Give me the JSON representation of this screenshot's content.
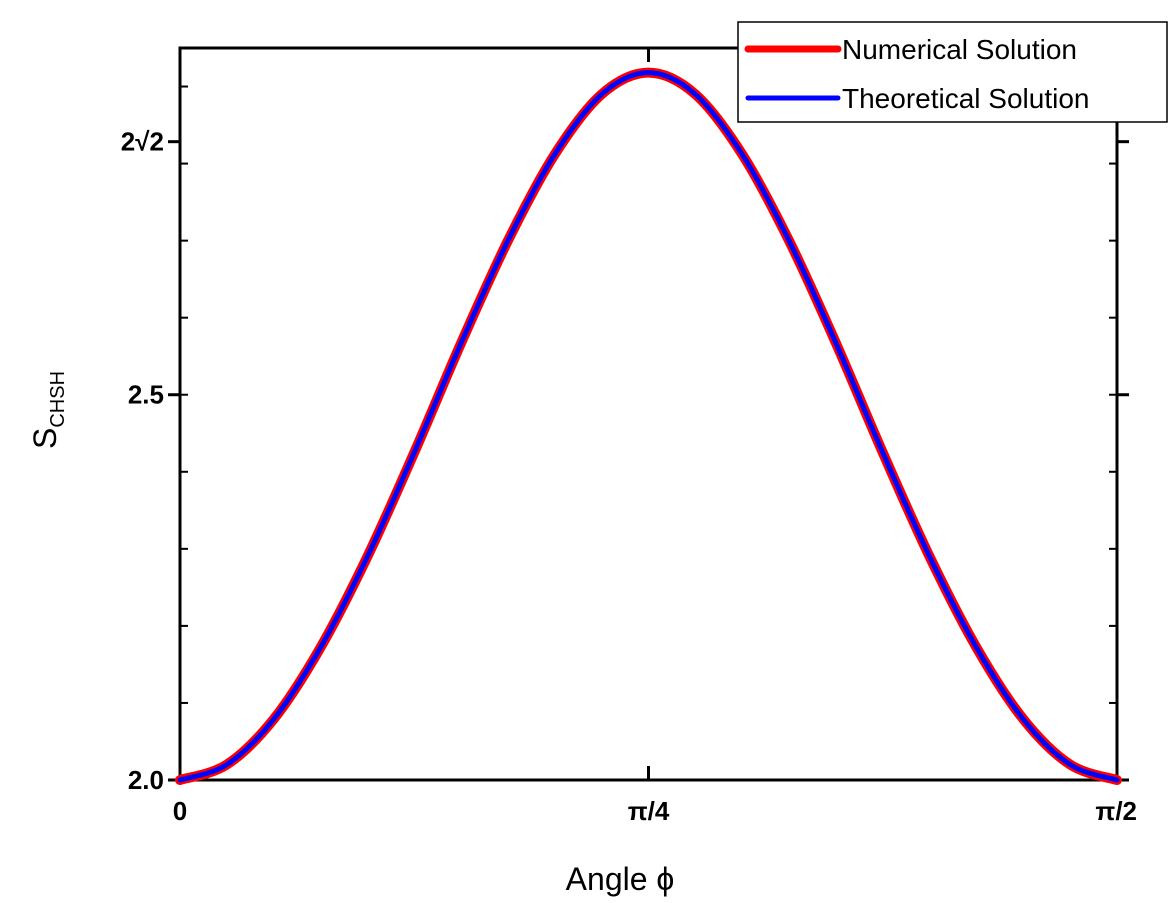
{
  "chart_data": {
    "type": "line",
    "title": "",
    "xlabel": "Angle ϕ",
    "ylabel_main": "S",
    "ylabel_sub": "CHSH",
    "x_ticks": [
      {
        "value": 0,
        "label": "0"
      },
      {
        "value": 0.7853981634,
        "label": "π/4"
      },
      {
        "value": 1.5707963268,
        "label": "π/2"
      }
    ],
    "y_ticks": [
      {
        "value": 2.0,
        "label": "2.0"
      },
      {
        "value": 2.5,
        "label": "2.5"
      },
      {
        "value": 2.8284271247,
        "label": "2√2"
      }
    ],
    "xlim": [
      0,
      1.5707963268
    ],
    "ylim": [
      2.0,
      2.95
    ],
    "y_minor_step": 0.1,
    "x": [
      0,
      0.0785,
      0.1571,
      0.2356,
      0.3142,
      0.3927,
      0.4712,
      0.5498,
      0.6283,
      0.7069,
      0.7854,
      0.8639,
      0.9425,
      1.021,
      1.0996,
      1.1781,
      1.2566,
      1.3352,
      1.4137,
      1.4923,
      1.5708
    ],
    "series": [
      {
        "name": "Numerical Solution",
        "color": "#ff0000",
        "values": [
          2.0,
          2.02,
          2.079,
          2.172,
          2.29,
          2.425,
          2.567,
          2.7,
          2.812,
          2.89,
          2.918,
          2.89,
          2.812,
          2.7,
          2.567,
          2.425,
          2.29,
          2.172,
          2.079,
          2.02,
          2.0
        ]
      },
      {
        "name": "Theoretical Solution",
        "color": "#0000ff",
        "values": [
          2.0,
          2.02,
          2.079,
          2.172,
          2.29,
          2.425,
          2.567,
          2.7,
          2.812,
          2.89,
          2.918,
          2.89,
          2.812,
          2.7,
          2.567,
          2.425,
          2.29,
          2.172,
          2.079,
          2.02,
          2.0
        ]
      }
    ],
    "legend_position": "top-right",
    "grid": false
  }
}
